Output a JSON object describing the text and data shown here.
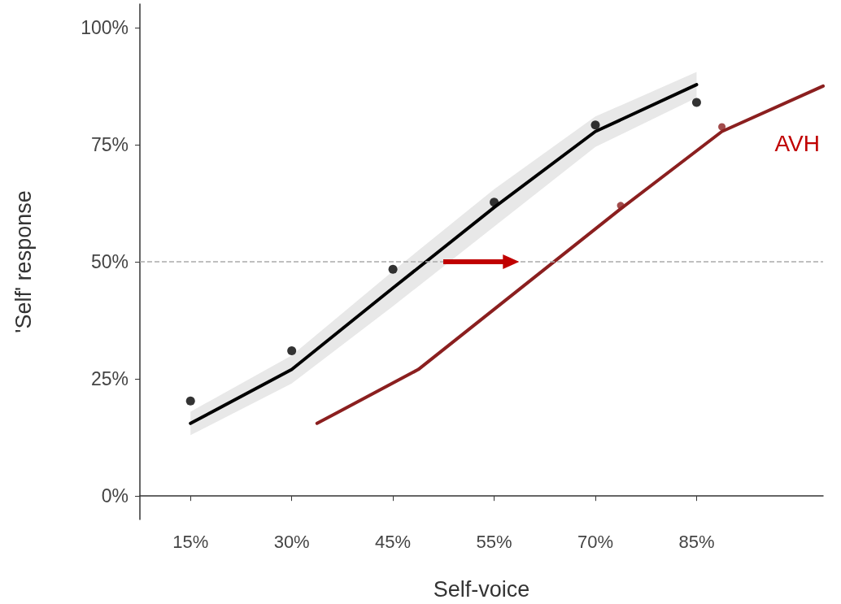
{
  "chart_data": {
    "type": "line",
    "xlabel": "Self-voice",
    "ylabel": "'Self' response",
    "categories": [
      null,
      null,
      "15%",
      null,
      null,
      null,
      "30%",
      null,
      null,
      null,
      "45%",
      null,
      null,
      null,
      "55%",
      null,
      null,
      null,
      "70%",
      null,
      null,
      null,
      "85%",
      null,
      null,
      null,
      null,
      null
    ],
    "ylim": [
      -5,
      105
    ],
    "yticks": [
      {
        "value": 0,
        "label": "0%"
      },
      {
        "value": 25,
        "label": "25%"
      },
      {
        "value": 50,
        "label": "50%"
      },
      {
        "value": 75,
        "label": "75%"
      },
      {
        "value": 100,
        "label": "100%"
      }
    ],
    "grid": false,
    "legend": false,
    "series": [
      {
        "color": "#000000",
        "marker": "none",
        "values": [
          null,
          null,
          15.5,
          null,
          null,
          null,
          27,
          null,
          null,
          null,
          44.4,
          null,
          null,
          null,
          61.6,
          null,
          null,
          null,
          77.8,
          null,
          null,
          null,
          87.8,
          null,
          null,
          null,
          null,
          null
        ],
        "lower": [
          null,
          null,
          13,
          null,
          null,
          null,
          24,
          null,
          null,
          null,
          40.5,
          null,
          null,
          null,
          57.5,
          null,
          null,
          null,
          74.5,
          null,
          null,
          null,
          85,
          null,
          null,
          null,
          null,
          null
        ],
        "upper": [
          null,
          null,
          18,
          null,
          null,
          null,
          30,
          null,
          null,
          null,
          48,
          null,
          null,
          null,
          65.5,
          null,
          null,
          null,
          81,
          null,
          null,
          null,
          90.5,
          null,
          null,
          null,
          null,
          null
        ]
      },
      {
        "type": "scatter",
        "marker": "circle",
        "color": "#000000",
        "values": [
          null,
          null,
          20.3,
          null,
          null,
          null,
          31,
          null,
          null,
          null,
          48.4,
          null,
          null,
          null,
          62.7,
          null,
          null,
          null,
          79.2,
          null,
          null,
          null,
          84,
          null,
          null,
          null,
          null,
          null
        ]
      },
      {
        "name": "AVH",
        "marker": "none",
        "color": "#8b1f1f",
        "values": [
          null,
          null,
          null,
          null,
          null,
          null,
          null,
          15.5,
          null,
          null,
          null,
          27,
          null,
          null,
          null,
          null,
          null,
          null,
          null,
          61.3,
          null,
          null,
          null,
          77.8,
          null,
          null,
          null,
          87.5
        ]
      },
      {
        "type": "scatter",
        "marker": "circle",
        "color": "#8b1f1f",
        "values": [
          null,
          null,
          null,
          null,
          null,
          null,
          null,
          null,
          null,
          null,
          null,
          null,
          null,
          null,
          null,
          null,
          null,
          null,
          null,
          62,
          null,
          null,
          null,
          78.8,
          null,
          null,
          null,
          null
        ]
      }
    ],
    "ref_lines": [
      {
        "axis": "y",
        "value": 50,
        "color": "#aaaaaa",
        "line_style": "dashed"
      }
    ]
  }
}
